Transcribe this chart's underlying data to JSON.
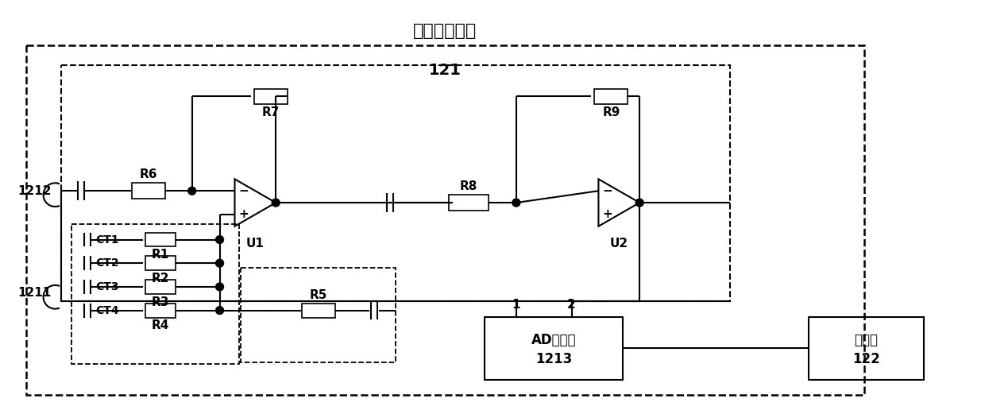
{
  "title": "数据采样装置",
  "label_121": "121",
  "label_1212": "1212",
  "label_1211": "1211",
  "label_u1": "U1",
  "label_u2": "U2",
  "label_r6": "R6",
  "label_r7": "R7",
  "label_r8": "R8",
  "label_r9": "R9",
  "label_r5": "R5",
  "label_r1": "R1",
  "label_r2": "R2",
  "label_r3": "R3",
  "label_r4": "R4",
  "label_ct1": "CT1",
  "label_ct2": "CT2",
  "label_ct3": "CT3",
  "label_ct4": "CT4",
  "label_ad": "AD转换器",
  "label_1213": "1213",
  "label_proc": "处理器",
  "label_122": "122",
  "label_1": "1",
  "label_2": "2",
  "fig_width": 12.4,
  "fig_height": 5.21,
  "dpi": 100,
  "bg_color": "#ffffff",
  "lc": "#000000"
}
